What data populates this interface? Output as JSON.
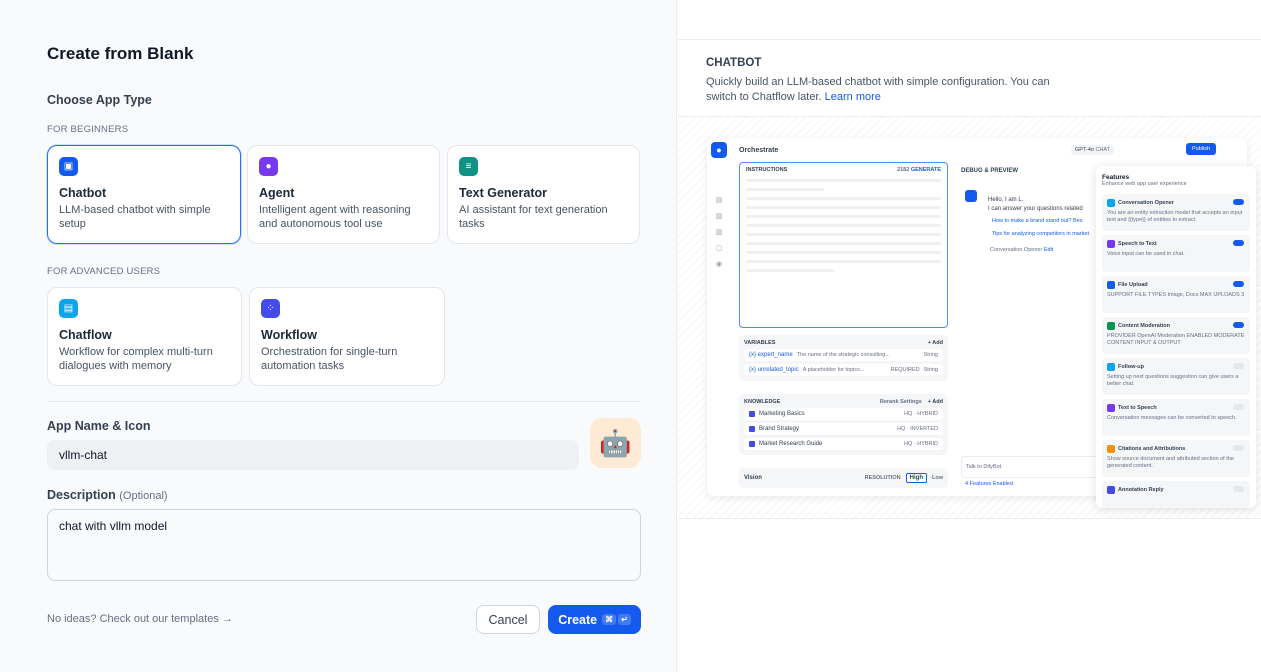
{
  "dialog": {
    "title": "Create from Blank",
    "choose_type": "Choose App Type",
    "for_beginners": "FOR BEGINNERS",
    "for_advanced": "FOR ADVANCED USERS"
  },
  "app_types": [
    {
      "name": "Chatbot",
      "desc": "LLM-based chatbot with simple setup",
      "color": "#155aef",
      "icon": "chatbot-icon",
      "selected": true
    },
    {
      "name": "Agent",
      "desc": "Intelligent agent with reasoning and autonomous tool use",
      "color": "#7839ee",
      "icon": "agent-icon"
    },
    {
      "name": "Text Generator",
      "desc": "AI assistant for text generation tasks",
      "color": "#0e9384",
      "icon": "text-generator-icon"
    },
    {
      "name": "Chatflow",
      "desc": "Workflow for complex multi-turn dialogues with memory",
      "color": "#0ba5ec",
      "icon": "chatflow-icon"
    },
    {
      "name": "Workflow",
      "desc": "Orchestration for single-turn automation tasks",
      "color": "#444ce7",
      "icon": "workflow-icon"
    }
  ],
  "form": {
    "name_label": "App Name & Icon",
    "name_value": "vllm-chat",
    "icon_emoji": "🤖",
    "icon_bg": "#ffead5",
    "desc_label": "Description",
    "desc_optional": "(Optional)",
    "desc_value": "chat with vllm model"
  },
  "footer": {
    "templates_link": "No ideas? Check out our templates",
    "arrow": "→",
    "cancel": "Cancel",
    "create": "Create",
    "shortcut_cmd": "⌘",
    "shortcut_enter": "↵"
  },
  "info": {
    "title": "CHATBOT",
    "desc": "Quickly build an LLM-based chatbot with simple configuration. You can switch to Chatflow later.",
    "learn_more": "Learn more"
  },
  "preview": {
    "orchestrate": "Orchestrate",
    "model": "GPT-4o",
    "model_tag": "CHAT",
    "publish": "Publish",
    "instructions": "INSTRUCTIONS",
    "count": "2182",
    "generate": "GENERATE",
    "variables": "VARIABLES",
    "add": "+ Add",
    "vars": [
      {
        "key": "{x} expert_name",
        "desc": "The name of the strategic consulting...",
        "type": "String"
      },
      {
        "key": "{x} unrelated_topic",
        "desc": "A placeholder for topics...",
        "req": "REQUIRED",
        "type": "String"
      }
    ],
    "knowledge": "KNOWLEDGE",
    "rerank": "Rerank Settings",
    "docs": [
      {
        "name": "Marketing Basics",
        "tag": "HQ · HYBRID"
      },
      {
        "name": "Brand Strategy",
        "tag": "HQ · INVERTED"
      },
      {
        "name": "Market Research Guide",
        "tag": "HQ · HYBRID"
      }
    ],
    "vision": "Vision",
    "resolution": "RESOLUTION",
    "high": "High",
    "low": "Low",
    "debug": "DEBUG & PREVIEW",
    "greeting1": "Hello, I am L.",
    "greeting2": "I can answer your questions related",
    "q1": "How to make a brand stand out?",
    "q1b": "Bes",
    "q2": "Tips for analyzing competitors in market",
    "opener": "Conversation Opener",
    "edit": "Edit",
    "talk": "Talk to DifyBot",
    "features_enabled": "4 Features Enabled",
    "features_title": "Features",
    "features_sub": "Enhance web app user experience",
    "features": [
      {
        "name": "Conversation Opener",
        "desc": "You are an entity extraction model that accepts an input text and {{type}} of entities to extract.",
        "on": true,
        "color": "#0ba5ec"
      },
      {
        "name": "Speech to Text",
        "desc": "Voice input can be used in chat.",
        "on": true,
        "color": "#7839ee"
      },
      {
        "name": "File Upload",
        "desc": "SUPPORT FILE TYPES  Image, Docs    MAX UPLOADS 3",
        "on": true,
        "color": "#155aef"
      },
      {
        "name": "Content Moderation",
        "desc": "PROVIDER OpenAI Moderation   ENABLED MODERATE CONTENT INPUT & OUTPUT",
        "on": true,
        "color": "#099250"
      },
      {
        "name": "Follow-up",
        "desc": "Setting up next questions suggestion can give users a better chat.",
        "on": false,
        "color": "#0ba5ec"
      },
      {
        "name": "Text to Speech",
        "desc": "Conversation messages can be converted to speech.",
        "on": false,
        "color": "#7839ee"
      },
      {
        "name": "Citations and Attributions",
        "desc": "Show source document and attributed section of the generated content.",
        "on": false,
        "color": "#f79009"
      },
      {
        "name": "Annotation Reply",
        "desc": "",
        "on": false,
        "color": "#444ce7"
      }
    ]
  }
}
